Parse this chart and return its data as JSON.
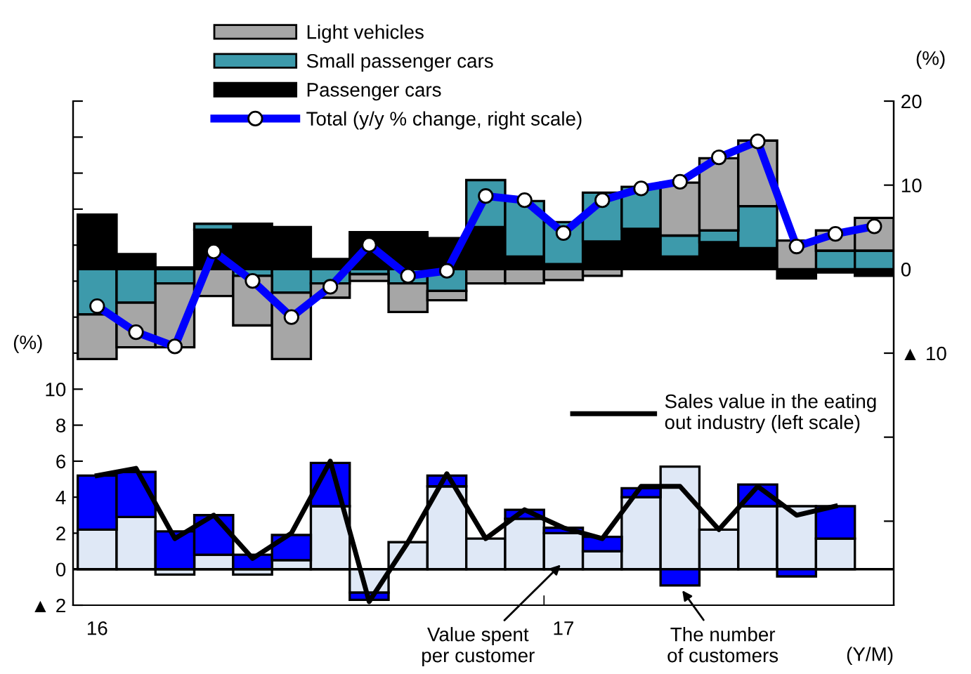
{
  "chart_data": {
    "type": "bar",
    "stacked": true,
    "categories": [
      "16",
      null,
      null,
      null,
      null,
      null,
      null,
      null,
      null,
      null,
      null,
      null,
      "17",
      null,
      null,
      null,
      null,
      null,
      null,
      null,
      null
    ],
    "xlabel": "(Y/M)",
    "ylabel": "(%)",
    "y2label": "(%)",
    "ylim": [
      -2,
      26
    ],
    "yticks": [
      {
        "value": -2,
        "label": "▲ 2"
      },
      0,
      2,
      4,
      6,
      8,
      10,
      {
        "value": 12,
        "label": null
      },
      {
        "value": 14,
        "label": null
      },
      {
        "value": 16,
        "label": null
      },
      {
        "value": 18,
        "label": null
      },
      {
        "value": 20,
        "label": null
      },
      {
        "value": 22,
        "label": null
      },
      {
        "value": 24,
        "label": null
      },
      {
        "value": 26,
        "label": null
      }
    ],
    "y2lim": [
      -40,
      20
    ],
    "y2ticks": [
      {
        "value": -30,
        "label": null
      },
      {
        "value": -20,
        "label": null
      },
      {
        "value": -10,
        "label": "▲ 10"
      },
      0,
      10,
      20
    ],
    "ref_lines": [
      {
        "axis": "y",
        "value": 0,
        "color": "#000000"
      }
    ],
    "legend": "top",
    "grid": false,
    "series": [
      {
        "name": "Passenger cars",
        "axis": "y2",
        "color": "#000000",
        "values": [
          6.5,
          1.8,
          0.2,
          4.7,
          5.4,
          5.0,
          1.2,
          4.4,
          4.4,
          3.7,
          5.0,
          1.5,
          0.6,
          3.3,
          4.8,
          1.5,
          3.2,
          2.5,
          -1.1,
          -0.4,
          -0.8
        ]
      },
      {
        "name": "Small passenger cars",
        "axis": "y2",
        "color": "#3d9aab",
        "values": [
          -5.4,
          -4.0,
          -1.7,
          0.7,
          -0.8,
          -2.8,
          -1.7,
          -0.6,
          -1.7,
          -2.6,
          5.6,
          6.6,
          5.0,
          5.8,
          5.0,
          2.5,
          1.4,
          5.0,
          null,
          2.2,
          2.2
        ]
      },
      {
        "name": "Light vehicles",
        "axis": "y2",
        "color": "#a6a6a6",
        "values": [
          -5.3,
          -5.3,
          -7.6,
          -3.2,
          -5.9,
          -7.9,
          -1.7,
          -0.8,
          -3.4,
          -1.1,
          -1.7,
          -1.7,
          -1.3,
          -0.8,
          null,
          6.3,
          8.6,
          7.8,
          3.4,
          2.4,
          3.9
        ]
      },
      {
        "name": "Total (y/y % change, right scale)",
        "type": "line",
        "axis": "y2",
        "color": "#0000ff",
        "marker": "circle",
        "line_style": "solid",
        "values": [
          -4.4,
          -7.5,
          -9.2,
          2.1,
          -1.4,
          -5.7,
          -2.1,
          2.9,
          -0.8,
          -0.2,
          8.7,
          8.2,
          4.3,
          8.2,
          9.6,
          10.4,
          13.3,
          15.2,
          2.7,
          4.2,
          5.1
        ]
      },
      {
        "name": "Value spent\nper customer",
        "axis": "y",
        "color": "#dfe8f6",
        "values": [
          2.2,
          2.9,
          -0.3,
          0.8,
          -0.3,
          0.5,
          3.5,
          -1.3,
          1.5,
          4.6,
          1.7,
          2.8,
          2.0,
          1.0,
          4.0,
          5.7,
          2.2,
          3.5,
          3.5,
          1.7,
          null
        ]
      },
      {
        "name": "The number\nof customers",
        "axis": "y",
        "color": "#0000ff",
        "values": [
          3.0,
          2.5,
          2.1,
          2.2,
          0.8,
          1.4,
          2.4,
          -0.4,
          null,
          0.6,
          null,
          0.5,
          0.3,
          0.8,
          0.5,
          -0.9,
          null,
          1.2,
          -0.4,
          1.8,
          null
        ]
      },
      {
        "name": "Sales value in the eating\nout industry (left scale)",
        "type": "line",
        "axis": "y",
        "color": "#000000",
        "line_style": "solid",
        "values": [
          5.2,
          5.6,
          1.7,
          3.0,
          0.6,
          2.0,
          6.0,
          -1.8,
          1.5,
          5.3,
          1.7,
          3.3,
          2.3,
          1.7,
          4.6,
          4.6,
          2.2,
          4.6,
          3.0,
          3.5,
          null
        ]
      }
    ]
  }
}
